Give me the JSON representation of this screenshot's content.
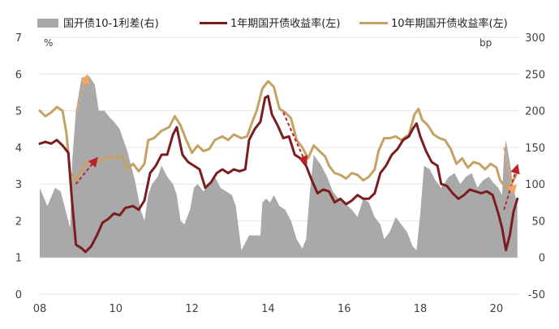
{
  "colors": {
    "spread": "#a9a9a9",
    "one_year": "#7b1c1f",
    "ten_year": "#c3a264",
    "arrow_red": "#c0202a",
    "arrow_orange": "#f4a460",
    "grid": "#e6e6e6"
  },
  "legend": [
    {
      "name": "国开债10-1利差(右)",
      "swatch": "area"
    },
    {
      "name": "1年期国开债收益率(左)",
      "swatch": "line_dark"
    },
    {
      "name": "10年期国开债收益率(左)",
      "swatch": "line_gold"
    }
  ],
  "chart_data": {
    "type": "line",
    "x_range": [
      2008.0,
      2020.6
    ],
    "x_ticks": [
      {
        "value": 2008,
        "label": "08"
      },
      {
        "value": 2010,
        "label": "10"
      },
      {
        "value": 2012,
        "label": "12"
      },
      {
        "value": 2014,
        "label": "14"
      },
      {
        "value": 2016,
        "label": "16"
      },
      {
        "value": 2018,
        "label": "18"
      },
      {
        "value": 2020,
        "label": "20"
      }
    ],
    "y_left": {
      "unit": "%",
      "min": 0,
      "max": 7,
      "ticks": [
        0,
        1,
        2,
        3,
        4,
        5,
        6,
        7
      ]
    },
    "y_right": {
      "unit": "bp",
      "min": -50,
      "max": 300,
      "ticks": [
        -50,
        0,
        50,
        100,
        150,
        200,
        250,
        300
      ]
    },
    "grid": "horizontal",
    "legend_position": "top",
    "series": [
      {
        "name": "国开债10-1利差(右)",
        "type": "area",
        "axis": "right",
        "points": [
          [
            2008.0,
            95
          ],
          [
            2008.2,
            70
          ],
          [
            2008.4,
            95
          ],
          [
            2008.55,
            90
          ],
          [
            2008.7,
            60
          ],
          [
            2008.8,
            40
          ],
          [
            2008.85,
            130
          ],
          [
            2008.95,
            200
          ],
          [
            2009.1,
            245
          ],
          [
            2009.3,
            247
          ],
          [
            2009.45,
            235
          ],
          [
            2009.55,
            200
          ],
          [
            2009.7,
            200
          ],
          [
            2009.85,
            190
          ],
          [
            2009.95,
            185
          ],
          [
            2010.1,
            175
          ],
          [
            2010.3,
            145
          ],
          [
            2010.5,
            105
          ],
          [
            2010.65,
            65
          ],
          [
            2010.75,
            50
          ],
          [
            2010.85,
            85
          ],
          [
            2010.95,
            100
          ],
          [
            2011.1,
            110
          ],
          [
            2011.2,
            125
          ],
          [
            2011.35,
            110
          ],
          [
            2011.5,
            100
          ],
          [
            2011.6,
            85
          ],
          [
            2011.7,
            50
          ],
          [
            2011.8,
            45
          ],
          [
            2011.95,
            65
          ],
          [
            2012.05,
            95
          ],
          [
            2012.15,
            100
          ],
          [
            2012.3,
            90
          ],
          [
            2012.45,
            100
          ],
          [
            2012.6,
            110
          ],
          [
            2012.75,
            95
          ],
          [
            2012.9,
            90
          ],
          [
            2013.05,
            85
          ],
          [
            2013.15,
            70
          ],
          [
            2013.3,
            10
          ],
          [
            2013.4,
            20
          ],
          [
            2013.5,
            30
          ],
          [
            2013.65,
            30
          ],
          [
            2013.8,
            30
          ],
          [
            2013.85,
            75
          ],
          [
            2013.95,
            80
          ],
          [
            2014.05,
            75
          ],
          [
            2014.15,
            85
          ],
          [
            2014.3,
            70
          ],
          [
            2014.45,
            65
          ],
          [
            2014.6,
            50
          ],
          [
            2014.75,
            25
          ],
          [
            2014.9,
            12
          ],
          [
            2015.0,
            25
          ],
          [
            2015.1,
            90
          ],
          [
            2015.2,
            140
          ],
          [
            2015.4,
            125
          ],
          [
            2015.55,
            110
          ],
          [
            2015.7,
            90
          ],
          [
            2015.85,
            80
          ],
          [
            2016.0,
            75
          ],
          [
            2016.2,
            65
          ],
          [
            2016.35,
            55
          ],
          [
            2016.5,
            80
          ],
          [
            2016.65,
            75
          ],
          [
            2016.8,
            55
          ],
          [
            2016.95,
            45
          ],
          [
            2017.05,
            25
          ],
          [
            2017.2,
            35
          ],
          [
            2017.35,
            55
          ],
          [
            2017.5,
            45
          ],
          [
            2017.65,
            35
          ],
          [
            2017.8,
            15
          ],
          [
            2017.9,
            10
          ],
          [
            2018.0,
            60
          ],
          [
            2018.1,
            125
          ],
          [
            2018.25,
            120
          ],
          [
            2018.4,
            105
          ],
          [
            2018.55,
            95
          ],
          [
            2018.75,
            110
          ],
          [
            2018.9,
            115
          ],
          [
            2019.05,
            100
          ],
          [
            2019.2,
            110
          ],
          [
            2019.35,
            115
          ],
          [
            2019.5,
            95
          ],
          [
            2019.65,
            105
          ],
          [
            2019.8,
            110
          ],
          [
            2019.95,
            100
          ],
          [
            2020.05,
            95
          ],
          [
            2020.15,
            85
          ],
          [
            2020.2,
            140
          ],
          [
            2020.25,
            160
          ],
          [
            2020.35,
            130
          ],
          [
            2020.45,
            95
          ],
          [
            2020.55,
            70
          ]
        ]
      },
      {
        "name": "1年期国开债收益率(左)",
        "type": "line",
        "axis": "left",
        "points": [
          [
            2008.0,
            4.1
          ],
          [
            2008.15,
            4.15
          ],
          [
            2008.3,
            4.1
          ],
          [
            2008.45,
            4.2
          ],
          [
            2008.6,
            4.05
          ],
          [
            2008.75,
            3.85
          ],
          [
            2008.85,
            2.5
          ],
          [
            2008.95,
            1.35
          ],
          [
            2009.1,
            1.25
          ],
          [
            2009.2,
            1.15
          ],
          [
            2009.35,
            1.3
          ],
          [
            2009.5,
            1.6
          ],
          [
            2009.65,
            1.95
          ],
          [
            2009.8,
            2.05
          ],
          [
            2009.95,
            2.2
          ],
          [
            2010.1,
            2.15
          ],
          [
            2010.25,
            2.35
          ],
          [
            2010.45,
            2.4
          ],
          [
            2010.6,
            2.3
          ],
          [
            2010.75,
            2.55
          ],
          [
            2010.9,
            3.3
          ],
          [
            2011.05,
            3.5
          ],
          [
            2011.2,
            3.8
          ],
          [
            2011.35,
            3.8
          ],
          [
            2011.5,
            4.35
          ],
          [
            2011.6,
            4.55
          ],
          [
            2011.75,
            3.8
          ],
          [
            2011.9,
            3.6
          ],
          [
            2012.05,
            3.5
          ],
          [
            2012.2,
            3.4
          ],
          [
            2012.35,
            2.9
          ],
          [
            2012.5,
            3.05
          ],
          [
            2012.65,
            3.3
          ],
          [
            2012.8,
            3.4
          ],
          [
            2012.95,
            3.3
          ],
          [
            2013.1,
            3.4
          ],
          [
            2013.25,
            3.35
          ],
          [
            2013.4,
            3.4
          ],
          [
            2013.5,
            4.2
          ],
          [
            2013.65,
            4.5
          ],
          [
            2013.8,
            4.7
          ],
          [
            2013.92,
            5.35
          ],
          [
            2014.0,
            5.4
          ],
          [
            2014.1,
            4.9
          ],
          [
            2014.25,
            4.6
          ],
          [
            2014.4,
            4.25
          ],
          [
            2014.55,
            4.3
          ],
          [
            2014.7,
            3.8
          ],
          [
            2014.85,
            3.7
          ],
          [
            2015.0,
            3.5
          ],
          [
            2015.15,
            3.1
          ],
          [
            2015.3,
            2.75
          ],
          [
            2015.45,
            2.85
          ],
          [
            2015.6,
            2.8
          ],
          [
            2015.75,
            2.5
          ],
          [
            2015.9,
            2.6
          ],
          [
            2016.05,
            2.45
          ],
          [
            2016.2,
            2.55
          ],
          [
            2016.35,
            2.7
          ],
          [
            2016.5,
            2.6
          ],
          [
            2016.65,
            2.6
          ],
          [
            2016.8,
            2.75
          ],
          [
            2016.95,
            3.3
          ],
          [
            2017.1,
            3.5
          ],
          [
            2017.25,
            3.8
          ],
          [
            2017.4,
            3.95
          ],
          [
            2017.55,
            4.2
          ],
          [
            2017.7,
            4.3
          ],
          [
            2017.8,
            4.5
          ],
          [
            2017.9,
            4.65
          ],
          [
            2018.0,
            4.3
          ],
          [
            2018.15,
            3.9
          ],
          [
            2018.3,
            3.6
          ],
          [
            2018.45,
            3.5
          ],
          [
            2018.55,
            3.0
          ],
          [
            2018.7,
            2.95
          ],
          [
            2018.85,
            2.75
          ],
          [
            2019.0,
            2.6
          ],
          [
            2019.15,
            2.7
          ],
          [
            2019.3,
            2.85
          ],
          [
            2019.45,
            2.8
          ],
          [
            2019.6,
            2.75
          ],
          [
            2019.75,
            2.8
          ],
          [
            2019.9,
            2.7
          ],
          [
            2020.05,
            2.2
          ],
          [
            2020.15,
            1.8
          ],
          [
            2020.25,
            1.2
          ],
          [
            2020.35,
            1.6
          ],
          [
            2020.45,
            2.25
          ],
          [
            2020.55,
            2.6
          ]
        ]
      },
      {
        "name": "10年期国开债收益率(左)",
        "type": "line",
        "axis": "left",
        "points": [
          [
            2008.0,
            5.0
          ],
          [
            2008.15,
            4.85
          ],
          [
            2008.3,
            4.95
          ],
          [
            2008.45,
            5.1
          ],
          [
            2008.6,
            5.0
          ],
          [
            2008.7,
            4.4
          ],
          [
            2008.8,
            3.3
          ],
          [
            2008.95,
            3.1
          ],
          [
            2009.1,
            3.4
          ],
          [
            2009.25,
            3.6
          ],
          [
            2009.4,
            3.65
          ],
          [
            2009.55,
            3.6
          ],
          [
            2009.7,
            3.7
          ],
          [
            2009.85,
            3.75
          ],
          [
            2010.0,
            3.7
          ],
          [
            2010.15,
            3.8
          ],
          [
            2010.3,
            3.4
          ],
          [
            2010.45,
            3.55
          ],
          [
            2010.6,
            3.35
          ],
          [
            2010.75,
            3.55
          ],
          [
            2010.85,
            4.2
          ],
          [
            2011.0,
            4.25
          ],
          [
            2011.2,
            4.45
          ],
          [
            2011.4,
            4.55
          ],
          [
            2011.55,
            4.85
          ],
          [
            2011.7,
            4.6
          ],
          [
            2011.85,
            4.2
          ],
          [
            2012.0,
            3.85
          ],
          [
            2012.15,
            4.05
          ],
          [
            2012.3,
            3.9
          ],
          [
            2012.45,
            3.95
          ],
          [
            2012.6,
            4.2
          ],
          [
            2012.8,
            4.3
          ],
          [
            2012.95,
            4.2
          ],
          [
            2013.1,
            4.35
          ],
          [
            2013.3,
            4.25
          ],
          [
            2013.45,
            4.3
          ],
          [
            2013.55,
            4.6
          ],
          [
            2013.7,
            5.0
          ],
          [
            2013.85,
            5.6
          ],
          [
            2014.0,
            5.8
          ],
          [
            2014.15,
            5.65
          ],
          [
            2014.3,
            5.05
          ],
          [
            2014.45,
            4.95
          ],
          [
            2014.6,
            4.8
          ],
          [
            2014.75,
            4.2
          ],
          [
            2014.9,
            4.0
          ],
          [
            2015.05,
            3.7
          ],
          [
            2015.2,
            4.05
          ],
          [
            2015.35,
            3.9
          ],
          [
            2015.5,
            3.75
          ],
          [
            2015.6,
            3.5
          ],
          [
            2015.75,
            3.3
          ],
          [
            2015.9,
            3.25
          ],
          [
            2016.05,
            3.15
          ],
          [
            2016.2,
            3.3
          ],
          [
            2016.35,
            3.25
          ],
          [
            2016.5,
            3.1
          ],
          [
            2016.65,
            3.2
          ],
          [
            2016.8,
            3.4
          ],
          [
            2016.9,
            3.9
          ],
          [
            2017.05,
            4.25
          ],
          [
            2017.2,
            4.25
          ],
          [
            2017.35,
            4.3
          ],
          [
            2017.5,
            4.2
          ],
          [
            2017.7,
            4.35
          ],
          [
            2017.85,
            4.9
          ],
          [
            2017.95,
            5.05
          ],
          [
            2018.05,
            4.75
          ],
          [
            2018.2,
            4.6
          ],
          [
            2018.35,
            4.35
          ],
          [
            2018.5,
            4.25
          ],
          [
            2018.65,
            4.2
          ],
          [
            2018.8,
            3.95
          ],
          [
            2018.95,
            3.55
          ],
          [
            2019.1,
            3.7
          ],
          [
            2019.25,
            3.45
          ],
          [
            2019.4,
            3.6
          ],
          [
            2019.55,
            3.55
          ],
          [
            2019.7,
            3.4
          ],
          [
            2019.85,
            3.55
          ],
          [
            2020.0,
            3.45
          ],
          [
            2020.1,
            3.1
          ],
          [
            2020.25,
            2.9
          ],
          [
            2020.35,
            2.95
          ],
          [
            2020.5,
            3.2
          ],
          [
            2020.55,
            3.4
          ]
        ]
      }
    ],
    "annotations": [
      {
        "type": "arrow",
        "color": "orange",
        "from": [
          2008.95,
          4.95
        ],
        "to": [
          2009.25,
          5.95
        ]
      },
      {
        "type": "arrow",
        "color": "red",
        "from": [
          2008.95,
          3.0
        ],
        "to": [
          2009.5,
          3.7
        ]
      },
      {
        "type": "arrow",
        "color": "red",
        "from": [
          2014.4,
          4.95
        ],
        "to": [
          2015.0,
          3.55
        ]
      },
      {
        "type": "arrow",
        "color": "red",
        "from": [
          2020.2,
          2.3
        ],
        "to": [
          2020.55,
          3.5
        ]
      },
      {
        "type": "arrow",
        "color": "orange",
        "from": [
          2020.2,
          4.0
        ],
        "to": [
          2020.45,
          2.75
        ]
      }
    ]
  }
}
